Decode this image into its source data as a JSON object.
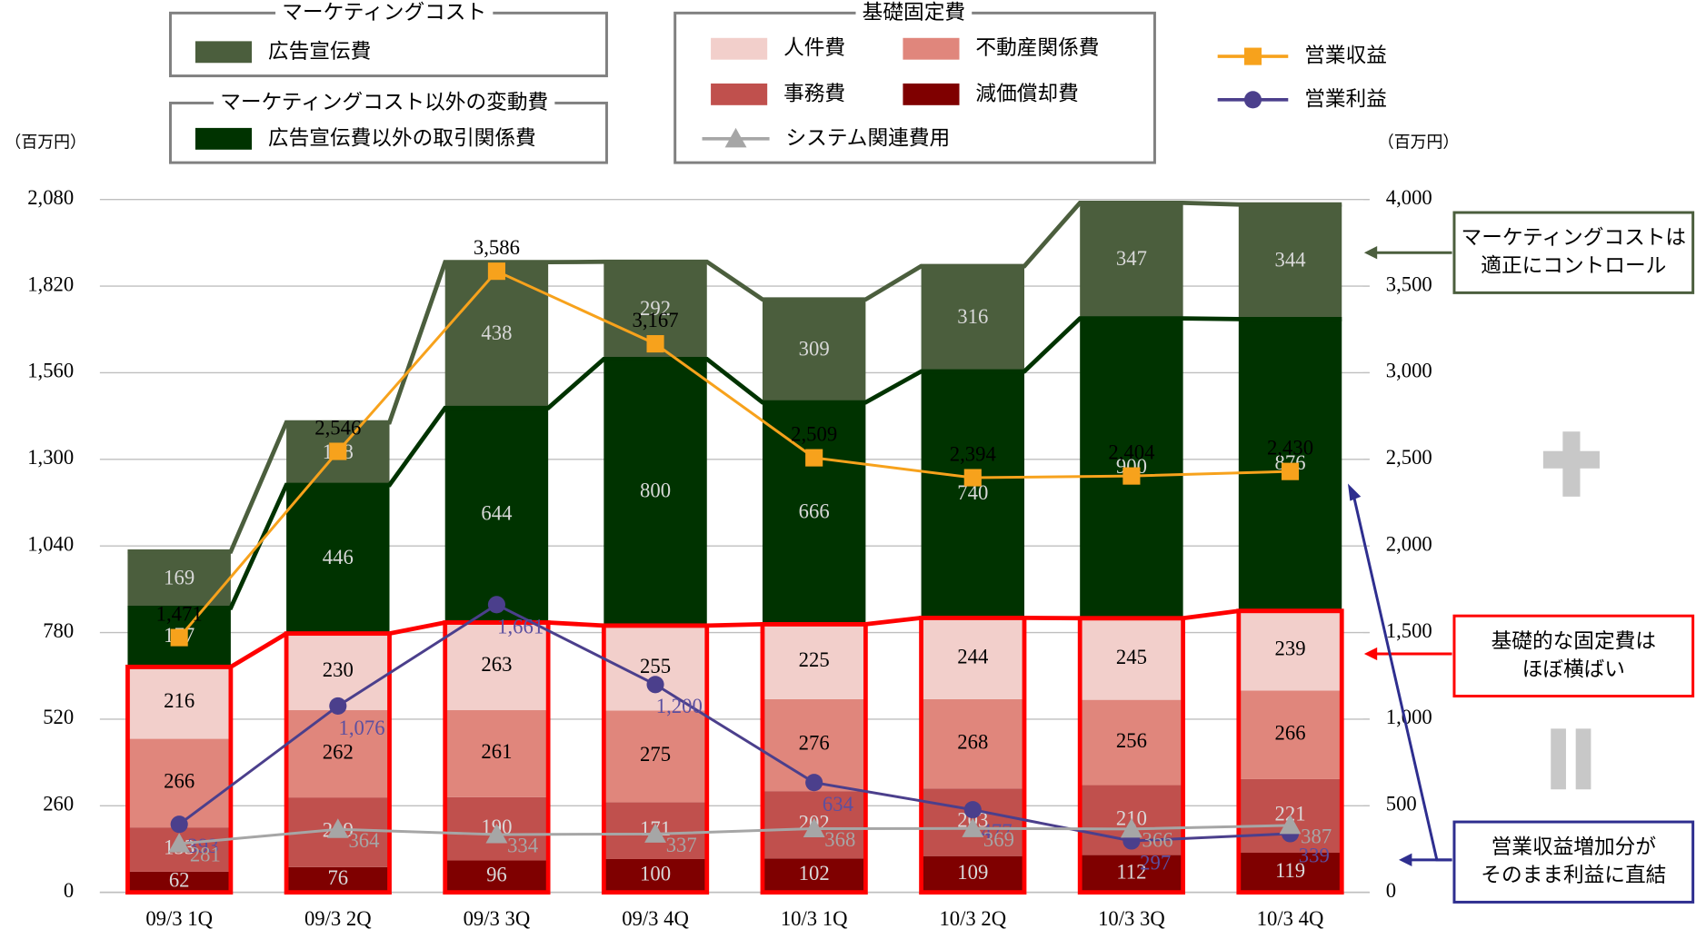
{
  "chart_data": {
    "type": "bar",
    "stacked": true,
    "y_label": "（百万円）",
    "y2_label": "（百万円）",
    "categories": [
      "09/3 1Q",
      "09/3 2Q",
      "09/3 3Q",
      "09/3 4Q",
      "10/3 1Q",
      "10/3 2Q",
      "10/3 3Q",
      "10/3 4Q"
    ],
    "ylim": [
      0,
      2080
    ],
    "yticks": [
      0,
      260,
      520,
      780,
      {
        "value": 1040,
        "label": "1,040"
      },
      {
        "value": 1300,
        "label": "1,300"
      },
      {
        "value": 1560,
        "label": "1,560"
      },
      {
        "value": 1820,
        "label": "1,820"
      },
      {
        "value": 2080,
        "label": "2,080"
      }
    ],
    "y2lim": [
      0,
      4000
    ],
    "y2ticks": [
      0,
      500,
      {
        "value": 1000,
        "label": "1,000"
      },
      {
        "value": 1500,
        "label": "1,500"
      },
      {
        "value": 2000,
        "label": "2,000"
      },
      {
        "value": 2500,
        "label": "2,500"
      },
      {
        "value": 3000,
        "label": "3,000"
      },
      {
        "value": 3500,
        "label": "3,500"
      },
      {
        "value": 4000,
        "label": "4,000"
      }
    ],
    "grid": true,
    "legend_groups": [
      {
        "title": "マーケティングコスト"
      },
      {
        "title": "マーケティングコスト以外の変動費"
      },
      {
        "title": "基礎固定費"
      }
    ],
    "series": [
      {
        "name": "減価償却費",
        "color": "#7f0000",
        "values": [
          62,
          76,
          96,
          100,
          102,
          109,
          112,
          119
        ]
      },
      {
        "name": "事務費",
        "color": "#c0504d",
        "values": [
          133,
          209,
          190,
          171,
          202,
          203,
          210,
          221
        ]
      },
      {
        "name": "不動産関係費",
        "color": "#e0867c",
        "values": [
          266,
          262,
          261,
          275,
          276,
          268,
          256,
          266
        ]
      },
      {
        "name": "人件費",
        "color": "#f2cfcb",
        "values": [
          216,
          230,
          263,
          255,
          225,
          244,
          245,
          239
        ]
      },
      {
        "name": "広告宣伝費以外の取引関係費",
        "color": "#003300",
        "values": [
          177,
          446,
          644,
          800,
          666,
          740,
          900,
          876
        ]
      },
      {
        "name": "広告宣伝費",
        "color": "#4b5e3d",
        "values": [
          169,
          188,
          438,
          292,
          309,
          316,
          347,
          344
        ]
      },
      {
        "name": "営業収益",
        "type": "line",
        "axis": "y2",
        "marker": "square",
        "color": "#f7a21c",
        "values": [
          1471,
          2546,
          3586,
          3167,
          2509,
          2394,
          2404,
          2430
        ],
        "value_labels": [
          "1,471",
          "2,546",
          "3,586",
          "3,167",
          "2,509",
          "2,394",
          "2,404",
          "2,430"
        ]
      },
      {
        "name": "営業利益",
        "type": "line",
        "axis": "y2",
        "marker": "circle",
        "color": "#4b3f8c",
        "values": [
          393,
          1076,
          1661,
          1200,
          634,
          477,
          297,
          339
        ],
        "value_labels": [
          "393",
          "1,076",
          "1,661",
          "1,200",
          "634",
          "477",
          "297",
          "339"
        ]
      },
      {
        "name": "システム関連費用",
        "type": "line",
        "axis": "y2",
        "marker": "triangle",
        "color": "#a6a6a6",
        "values": [
          281,
          364,
          334,
          337,
          368,
          369,
          366,
          387
        ]
      }
    ],
    "annotations": [
      {
        "lines": [
          "マーケティングコストは",
          "適正にコントロール"
        ],
        "color": "#4b5e3d"
      },
      {
        "lines": [
          "基礎的な固定費は",
          "ほぼ横ばい"
        ],
        "color": "#ff0000"
      },
      {
        "lines": [
          "営業収益増加分が",
          "そのまま利益に直結"
        ],
        "color": "#2e2e8f"
      }
    ]
  }
}
